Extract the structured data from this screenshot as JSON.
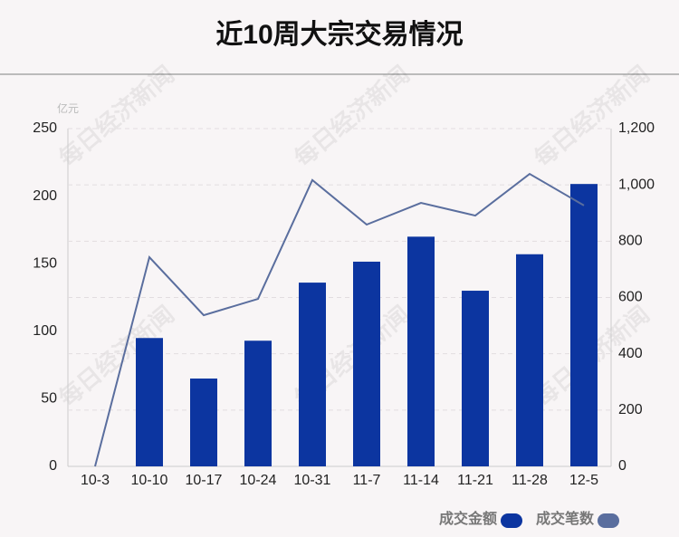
{
  "chart_data": {
    "type": "bar-line",
    "title": "近10周大宗交易情况",
    "watermark": "每日经济新闻",
    "y_unit": "亿元",
    "categories": [
      "10-3",
      "10-10",
      "10-17",
      "10-24",
      "10-31",
      "11-7",
      "11-14",
      "11-21",
      "11-28",
      "12-5"
    ],
    "series": [
      {
        "name": "成交金额",
        "type": "bar",
        "color": "#0c35a0",
        "values": [
          0,
          95,
          65,
          93,
          136,
          151.5,
          170,
          130,
          157,
          209
        ]
      },
      {
        "name": "成交笔数",
        "type": "line",
        "axis": "y2",
        "color": "#5a6e9e",
        "values": [
          0,
          743,
          537,
          595,
          1017,
          859,
          936,
          891,
          1039,
          927
        ]
      }
    ],
    "ylim": [
      0,
      250
    ],
    "yticks": [
      0,
      50,
      100,
      150,
      200,
      250
    ],
    "y2lim": [
      0,
      1200
    ],
    "y2ticks": [
      0,
      200,
      400,
      600,
      800,
      {
        "value": 1000,
        "label": "1,000"
      },
      {
        "value": 1200,
        "label": "1,200"
      }
    ],
    "grid": true,
    "legend": "bottom-right"
  }
}
